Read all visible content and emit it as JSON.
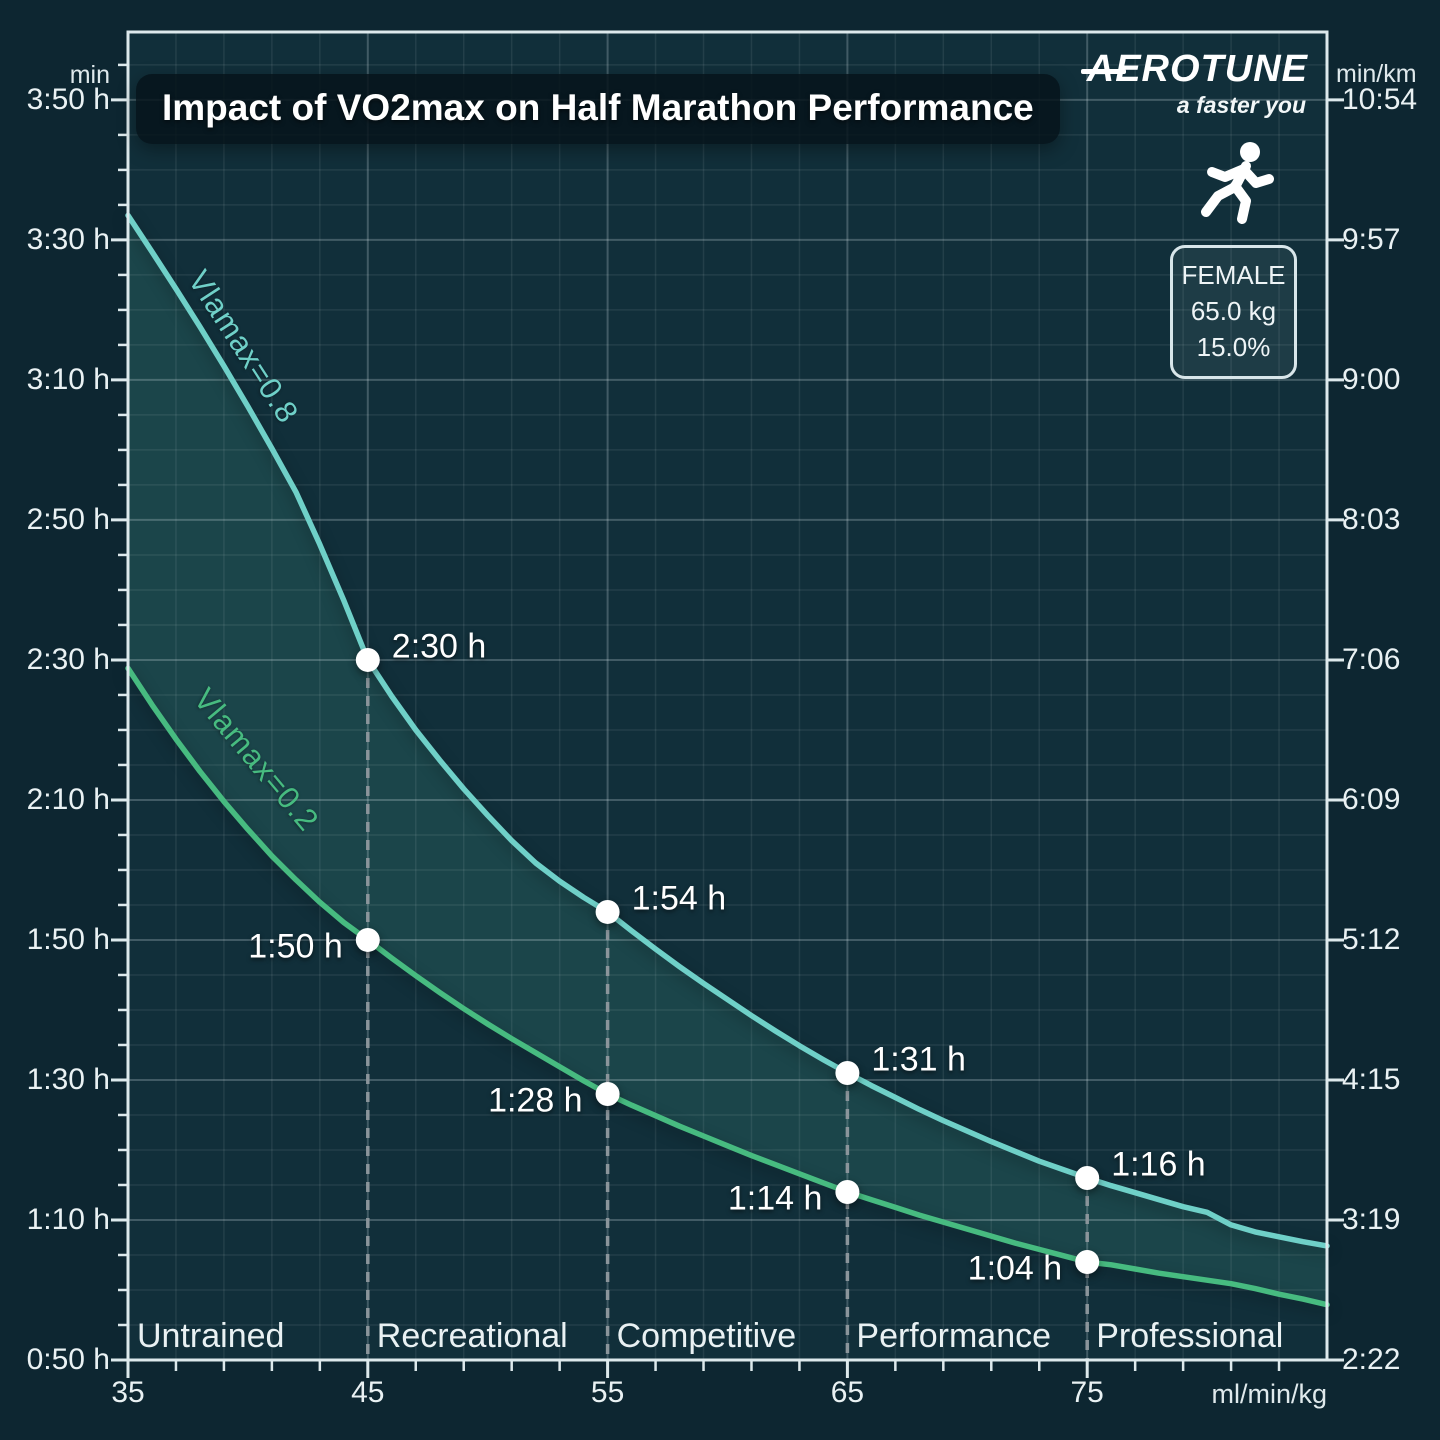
{
  "title": "Impact of VO2max on Half Marathon Performance",
  "brand": {
    "logo": "AEROTUNE",
    "tagline": "a faster you"
  },
  "athlete": {
    "sex": "FEMALE",
    "weight": "65.0 kg",
    "body_fat": "15.0%"
  },
  "palette": {
    "outer_bg": "#0d2631",
    "plot_bg": "#112f3a",
    "band_fill": "rgba(102,226,189,0.13)",
    "curve_high": "#6fd0c8",
    "curve_low": "#47bb80",
    "dashed_line": "#8b959b",
    "axis": "#dde9ec",
    "grid_major": "rgba(223,235,238,0.24)",
    "grid_minor": "rgba(223,235,238,0.09)",
    "text": "#e9f1f3"
  },
  "chart_data": {
    "type": "line",
    "title": "Impact of VO2max on Half Marathon Performance",
    "xlabel": "ml/min/kg",
    "ylabel_left": "min",
    "ylabel_right": "min/km",
    "x_range": [
      35,
      85
    ],
    "y_range_minutes": [
      50,
      239.7
    ],
    "grid": "on",
    "x_minor_step": 2,
    "y_minor_step_minutes": 5,
    "left_ticks": [
      {
        "t": 230,
        "label": "3:50 h"
      },
      {
        "t": 210,
        "label": "3:30 h"
      },
      {
        "t": 190,
        "label": "3:10 h"
      },
      {
        "t": 170,
        "label": "2:50 h"
      },
      {
        "t": 150,
        "label": "2:30 h"
      },
      {
        "t": 130,
        "label": "2:10 h"
      },
      {
        "t": 110,
        "label": "1:50 h"
      },
      {
        "t": 90,
        "label": "1:30 h"
      },
      {
        "t": 70,
        "label": "1:10 h"
      },
      {
        "t": 50,
        "label": "0:50 h"
      }
    ],
    "right_ticks": [
      {
        "t": 230,
        "label": "10:54"
      },
      {
        "t": 210,
        "label": "9:57"
      },
      {
        "t": 190,
        "label": "9:00"
      },
      {
        "t": 170,
        "label": "8:03"
      },
      {
        "t": 150,
        "label": "7:06"
      },
      {
        "t": 130,
        "label": "6:09"
      },
      {
        "t": 110,
        "label": "5:12"
      },
      {
        "t": 90,
        "label": "4:15"
      },
      {
        "t": 70,
        "label": "3:19"
      },
      {
        "t": 50,
        "label": "2:22"
      }
    ],
    "x_ticks": [
      {
        "v": 35,
        "label": "35"
      },
      {
        "v": 45,
        "label": "45"
      },
      {
        "v": 55,
        "label": "55"
      },
      {
        "v": 65,
        "label": "65"
      },
      {
        "v": 75,
        "label": "75"
      }
    ],
    "zones": [
      {
        "x": 35,
        "label": "Untrained"
      },
      {
        "x": 45,
        "label": "Recreational"
      },
      {
        "x": 55,
        "label": "Competitive"
      },
      {
        "x": 65,
        "label": "Performance"
      },
      {
        "x": 75,
        "label": "Professional"
      }
    ],
    "series": [
      {
        "name": "Vlamax=0.8",
        "color": "#6fd0c8",
        "label_pos": {
          "x": 243,
          "y": 347
        },
        "points": [
          [
            35,
            213.5
          ],
          [
            36,
            208.3
          ],
          [
            37,
            203.0
          ],
          [
            38,
            197.6
          ],
          [
            39,
            192.0
          ],
          [
            40,
            186.2
          ],
          [
            41,
            180.2
          ],
          [
            42,
            174.0
          ],
          [
            43,
            166.5
          ],
          [
            44,
            158.5
          ],
          [
            45,
            150.0
          ],
          [
            46,
            144.8
          ],
          [
            47,
            140.0
          ],
          [
            48,
            135.7
          ],
          [
            49,
            131.6
          ],
          [
            50,
            127.8
          ],
          [
            51,
            124.2
          ],
          [
            52,
            121.0
          ],
          [
            53,
            118.4
          ],
          [
            54,
            116.1
          ],
          [
            55,
            114.0
          ],
          [
            56,
            111.3
          ],
          [
            57,
            108.7
          ],
          [
            58,
            106.2
          ],
          [
            59,
            103.8
          ],
          [
            60,
            101.5
          ],
          [
            61,
            99.2
          ],
          [
            62,
            97.0
          ],
          [
            63,
            94.9
          ],
          [
            64,
            92.9
          ],
          [
            65,
            91.0
          ],
          [
            66,
            89.2
          ],
          [
            67,
            87.5
          ],
          [
            68,
            85.8
          ],
          [
            69,
            84.2
          ],
          [
            70,
            82.7
          ],
          [
            71,
            81.2
          ],
          [
            72,
            79.8
          ],
          [
            73,
            78.4
          ],
          [
            74,
            77.2
          ],
          [
            75,
            76.0
          ],
          [
            76,
            74.9
          ],
          [
            77,
            73.9
          ],
          [
            78,
            72.9
          ],
          [
            79,
            71.9
          ],
          [
            80,
            71.1
          ],
          [
            81,
            69.3
          ],
          [
            82,
            68.3
          ],
          [
            83,
            67.6
          ],
          [
            84,
            66.9
          ],
          [
            85,
            66.3
          ]
        ],
        "markers": [
          {
            "x": 45,
            "t": 150,
            "label": "2:30 h",
            "side": "right"
          },
          {
            "x": 55,
            "t": 114,
            "label": "1:54 h",
            "side": "right"
          },
          {
            "x": 65,
            "t": 91,
            "label": "1:31 h",
            "side": "right"
          },
          {
            "x": 75,
            "t": 76,
            "label": "1:16 h",
            "side": "right"
          }
        ]
      },
      {
        "name": "Vlamax=0.2",
        "color": "#47bb80",
        "label_pos": {
          "x": 256,
          "y": 760
        },
        "points": [
          [
            35,
            148.8
          ],
          [
            36,
            143.6
          ],
          [
            37,
            138.7
          ],
          [
            38,
            134.1
          ],
          [
            39,
            129.8
          ],
          [
            40,
            125.8
          ],
          [
            41,
            122.0
          ],
          [
            42,
            118.6
          ],
          [
            43,
            115.4
          ],
          [
            44,
            112.5
          ],
          [
            45,
            110.0
          ],
          [
            46,
            107.4
          ],
          [
            47,
            104.9
          ],
          [
            48,
            102.5
          ],
          [
            49,
            100.2
          ],
          [
            50,
            98.0
          ],
          [
            51,
            95.9
          ],
          [
            52,
            93.9
          ],
          [
            53,
            91.9
          ],
          [
            54,
            89.9
          ],
          [
            55,
            88.0
          ],
          [
            56,
            86.4
          ],
          [
            57,
            84.9
          ],
          [
            58,
            83.4
          ],
          [
            59,
            82.0
          ],
          [
            60,
            80.6
          ],
          [
            61,
            79.2
          ],
          [
            62,
            77.9
          ],
          [
            63,
            76.6
          ],
          [
            64,
            75.3
          ],
          [
            65,
            74.0
          ],
          [
            66,
            72.9
          ],
          [
            67,
            71.8
          ],
          [
            68,
            70.7
          ],
          [
            69,
            69.7
          ],
          [
            70,
            68.7
          ],
          [
            71,
            67.7
          ],
          [
            72,
            66.7
          ],
          [
            73,
            65.8
          ],
          [
            74,
            64.9
          ],
          [
            75,
            64.0
          ],
          [
            76,
            63.6
          ],
          [
            77,
            63.0
          ],
          [
            78,
            62.4
          ],
          [
            79,
            61.9
          ],
          [
            80,
            61.4
          ],
          [
            81,
            60.9
          ],
          [
            82,
            60.2
          ],
          [
            83,
            59.4
          ],
          [
            84,
            58.7
          ],
          [
            85,
            57.9
          ]
        ],
        "markers": [
          {
            "x": 45,
            "t": 110,
            "label": "1:50 h",
            "side": "left"
          },
          {
            "x": 55,
            "t": 88,
            "label": "1:28 h",
            "side": "left"
          },
          {
            "x": 65,
            "t": 74,
            "label": "1:14 h",
            "side": "left"
          },
          {
            "x": 75,
            "t": 64,
            "label": "1:04 h",
            "side": "left"
          }
        ]
      }
    ]
  }
}
